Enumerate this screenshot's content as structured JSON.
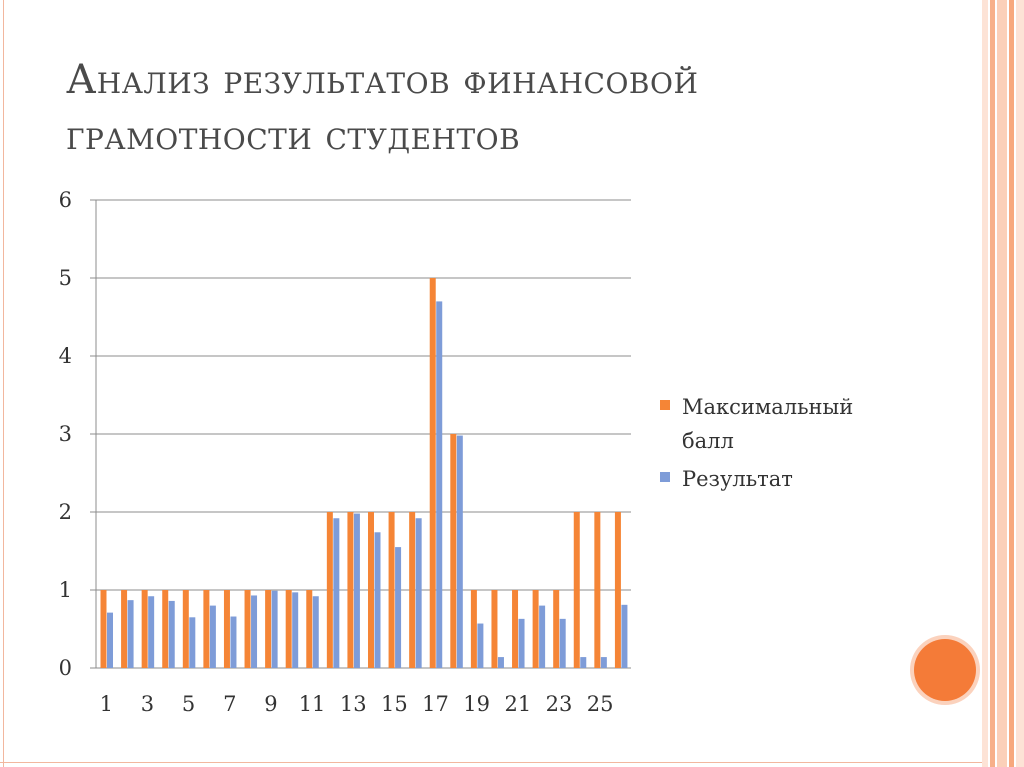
{
  "title": "Анализ результатов финансовой грамотности студентов",
  "chart_data": {
    "type": "bar",
    "categories": [
      "1",
      "2",
      "3",
      "4",
      "5",
      "6",
      "7",
      "8",
      "9",
      "10",
      "11",
      "12",
      "13",
      "14",
      "15",
      "16",
      "17",
      "18",
      "19",
      "20",
      "21",
      "22",
      "23",
      "24",
      "25",
      "26"
    ],
    "x_tick_labels": [
      "1",
      "3",
      "5",
      "7",
      "9",
      "11",
      "13",
      "15",
      "17",
      "19",
      "21",
      "23",
      "25"
    ],
    "y_tick_labels": [
      "0",
      "1",
      "2",
      "3",
      "4",
      "5",
      "6"
    ],
    "ylim": [
      0,
      6
    ],
    "grid": true,
    "legend_position": "right",
    "series": [
      {
        "name": "Максимальный балл",
        "color": "#f58536",
        "values": [
          1,
          1,
          1,
          1,
          1,
          1,
          1,
          1,
          1,
          1,
          1,
          2,
          2,
          2,
          2,
          2,
          5,
          3,
          1,
          1,
          1,
          1,
          1,
          2,
          2,
          2
        ]
      },
      {
        "name": "Результат",
        "color": "#7e9cd8",
        "values": [
          0.71,
          0.87,
          0.92,
          0.86,
          0.65,
          0.8,
          0.66,
          0.93,
          0.99,
          0.97,
          0.92,
          1.92,
          1.98,
          1.74,
          1.55,
          1.92,
          4.7,
          2.98,
          0.57,
          0.14,
          0.63,
          0.8,
          0.63,
          0.14,
          0.14,
          0.81
        ]
      }
    ]
  },
  "colors": {
    "accent": "#f47b38",
    "stripes": [
      "#fbd7c5",
      "#f47b38",
      "#fbd7c5",
      "#f9a97a",
      "#fbd7c5"
    ]
  }
}
